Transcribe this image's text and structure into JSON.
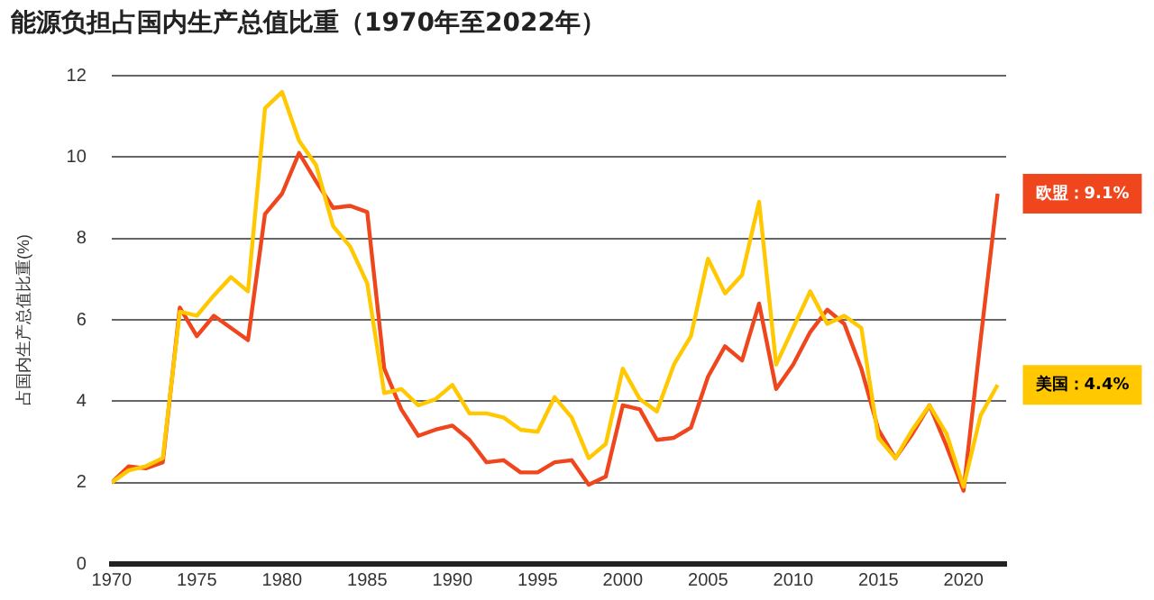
{
  "chart_data": {
    "type": "line",
    "title": "能源负担占国内生产总值比重（1970年至2022年）",
    "ylabel": "占国内生产总值比重(%)",
    "x": [
      1970,
      1971,
      1972,
      1973,
      1974,
      1975,
      1976,
      1977,
      1978,
      1979,
      1980,
      1981,
      1982,
      1983,
      1984,
      1985,
      1986,
      1987,
      1988,
      1989,
      1990,
      1991,
      1992,
      1993,
      1994,
      1995,
      1996,
      1997,
      1998,
      1999,
      2000,
      2001,
      2002,
      2003,
      2004,
      2005,
      2006,
      2007,
      2008,
      2009,
      2010,
      2011,
      2012,
      2013,
      2014,
      2015,
      2016,
      2017,
      2018,
      2019,
      2020,
      2021,
      2022
    ],
    "series": [
      {
        "color": "#ffc800",
        "values": [
          2.0,
          2.3,
          2.4,
          2.6,
          6.2,
          6.1,
          6.6,
          7.05,
          6.7,
          11.2,
          11.6,
          10.4,
          9.8,
          8.3,
          7.8,
          6.9,
          4.2,
          4.3,
          3.9,
          4.05,
          4.4,
          3.7,
          3.7,
          3.6,
          3.3,
          3.25,
          4.1,
          3.6,
          2.6,
          2.95,
          4.8,
          4.05,
          3.75,
          4.9,
          5.6,
          7.5,
          6.65,
          7.1,
          8.9,
          4.9,
          5.8,
          6.7,
          5.9,
          6.1,
          5.8,
          3.1,
          2.6,
          3.3,
          3.9,
          3.2,
          1.9,
          3.65,
          4.4
        ]
      },
      {
        "color": "#f0461e",
        "values": [
          2.0,
          2.4,
          2.35,
          2.5,
          6.3,
          5.6,
          6.1,
          5.8,
          5.5,
          8.6,
          9.1,
          10.1,
          9.4,
          8.75,
          8.8,
          8.65,
          4.8,
          3.8,
          3.15,
          3.3,
          3.4,
          3.05,
          2.5,
          2.55,
          2.25,
          2.25,
          2.5,
          2.55,
          1.95,
          2.15,
          3.9,
          3.8,
          3.05,
          3.1,
          3.35,
          4.6,
          5.35,
          5.0,
          6.4,
          4.3,
          4.9,
          5.7,
          6.25,
          5.9,
          4.8,
          3.3,
          2.6,
          3.2,
          3.9,
          2.9,
          1.8,
          5.5,
          9.1
        ]
      }
    ],
    "annotations": [
      {
        "text": "美国：4.4%",
        "x": 2022,
        "y": 4.4
      },
      {
        "text": "欧盟：9.1%",
        "x": 2022,
        "y": 9.1
      }
    ],
    "xlim": [
      1970,
      2022.5
    ],
    "xticks": [
      1970,
      1975,
      1980,
      1985,
      1990,
      1995,
      2000,
      2005,
      2010,
      2015,
      2020
    ],
    "ylim": [
      0,
      12
    ],
    "yticks": [
      0,
      2,
      4,
      6,
      8,
      10,
      12
    ],
    "grid": "y",
    "legend": false,
    "marker": "none",
    "line_style": "solid"
  }
}
